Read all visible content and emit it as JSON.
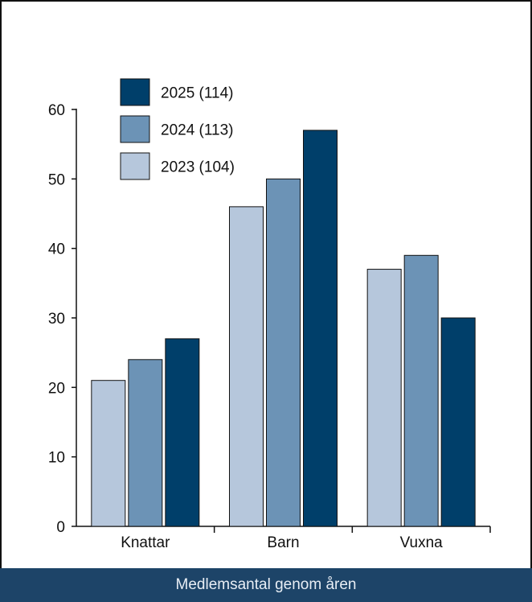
{
  "chart_data": {
    "type": "bar",
    "categories": [
      "Knattar",
      "Barn",
      "Vuxna"
    ],
    "series": [
      {
        "name": "2023 (104)",
        "values": [
          21,
          46,
          37
        ],
        "color": "#b6c7dc"
      },
      {
        "name": "2024 (113)",
        "values": [
          24,
          50,
          39
        ],
        "color": "#6c93b6"
      },
      {
        "name": "2025 (114)",
        "values": [
          27,
          57,
          30
        ],
        "color": "#003f6a"
      }
    ],
    "ylim": [
      0,
      60
    ],
    "yticks": [
      0,
      10,
      20,
      30,
      40,
      50,
      60
    ],
    "grid": false,
    "legend_position": "top-left",
    "legend_order": [
      2,
      1,
      0
    ]
  },
  "caption": "Medlemsantal genom åren"
}
